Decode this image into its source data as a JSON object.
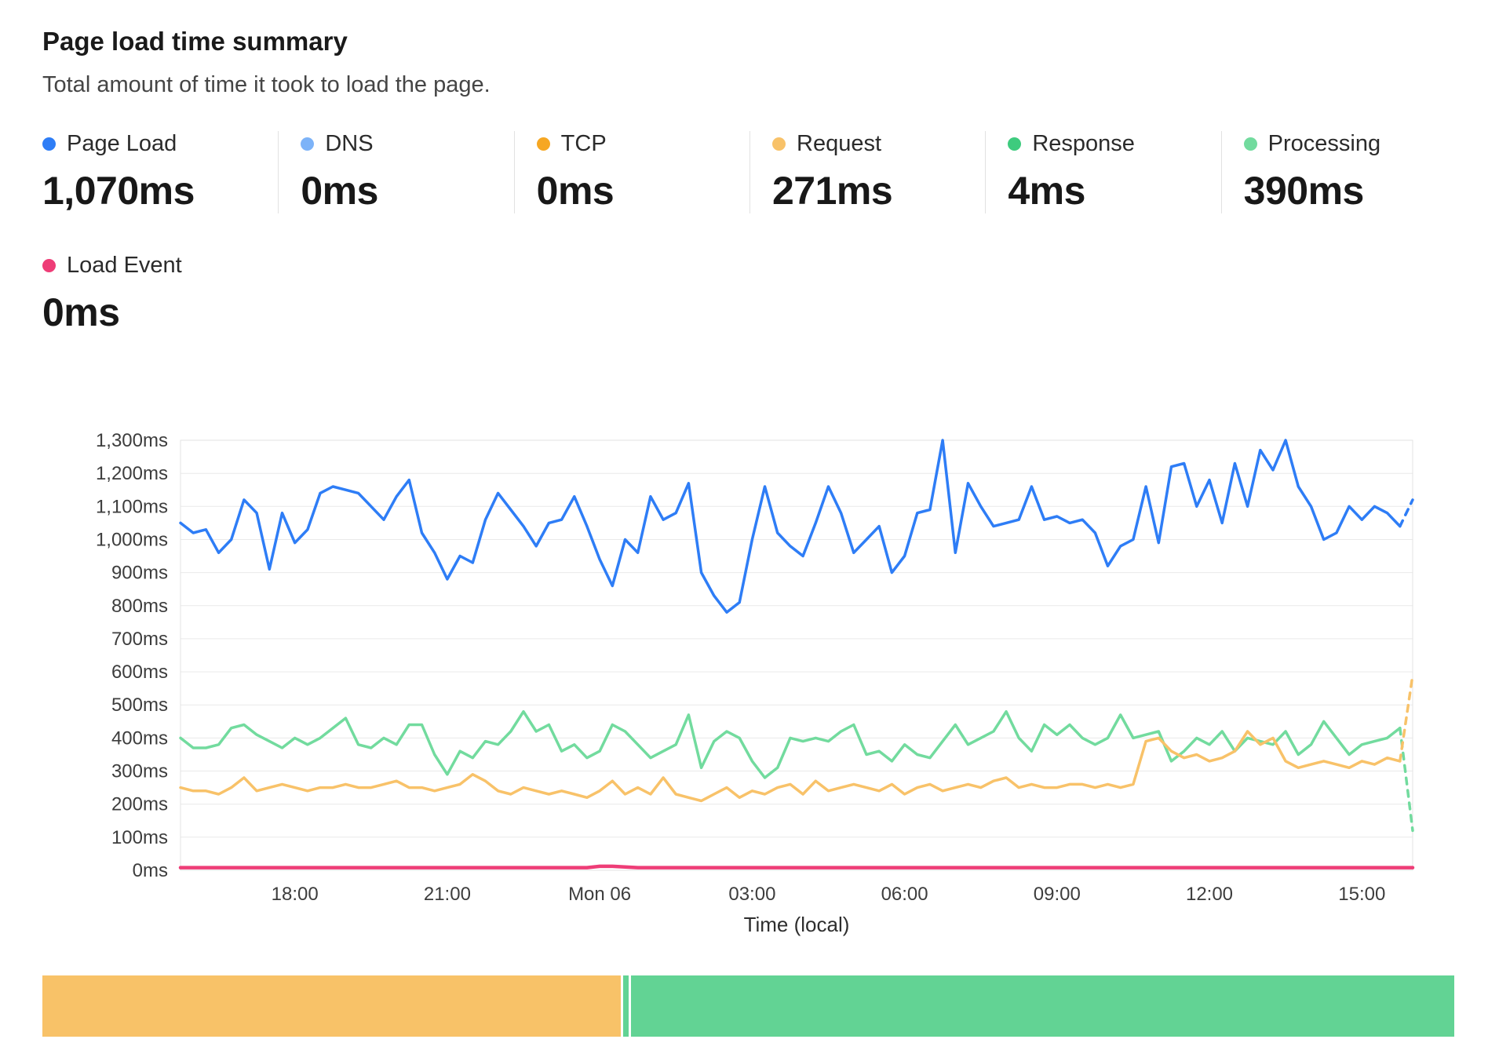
{
  "header": {
    "title": "Page load time summary",
    "subtitle": "Total amount of time it took to load the page."
  },
  "metrics": [
    {
      "label": "Page Load",
      "value": "1,070ms",
      "color": "#2e7df6"
    },
    {
      "label": "DNS",
      "value": "0ms",
      "color": "#7db3f8"
    },
    {
      "label": "TCP",
      "value": "0ms",
      "color": "#f6a723"
    },
    {
      "label": "Request",
      "value": "271ms",
      "color": "#f8c269"
    },
    {
      "label": "Response",
      "value": "4ms",
      "color": "#3ecb7e"
    },
    {
      "label": "Processing",
      "value": "390ms",
      "color": "#72db9e"
    },
    {
      "label": "Load Event",
      "value": "0ms",
      "color": "#ee3d77"
    }
  ],
  "chart_data": {
    "type": "line",
    "title": "Page load time summary",
    "xlabel": "Time (local)",
    "ylabel": "",
    "ylim": [
      0,
      1300
    ],
    "ytick_step": 100,
    "ytick_suffix": "ms",
    "grid": "horizontal",
    "legend_position": "top",
    "n_points": 98,
    "x_tick_labels": [
      "18:00",
      "21:00",
      "Mon 06",
      "03:00",
      "06:00",
      "09:00",
      "12:00",
      "15:00"
    ],
    "x_tick_indices": [
      9,
      21,
      33,
      45,
      57,
      69,
      81,
      93
    ],
    "series": [
      {
        "name": "Processing",
        "color": "#72db9e",
        "width": 3.5,
        "dash_tail": 1,
        "values": [
          400,
          370,
          370,
          380,
          430,
          440,
          410,
          390,
          370,
          400,
          380,
          400,
          430,
          460,
          380,
          370,
          400,
          380,
          440,
          440,
          350,
          290,
          360,
          340,
          390,
          380,
          420,
          480,
          420,
          440,
          360,
          380,
          340,
          360,
          440,
          420,
          380,
          340,
          360,
          380,
          470,
          310,
          390,
          420,
          400,
          330,
          280,
          310,
          400,
          390,
          400,
          390,
          420,
          440,
          350,
          360,
          330,
          380,
          350,
          340,
          390,
          440,
          380,
          400,
          420,
          480,
          400,
          360,
          440,
          410,
          440,
          400,
          380,
          400,
          470,
          400,
          410,
          420,
          330,
          360,
          400,
          380,
          420,
          360,
          400,
          390,
          380,
          420,
          350,
          380,
          450,
          400,
          350,
          380,
          390,
          400,
          430,
          120
        ]
      },
      {
        "name": "Request",
        "color": "#f8c269",
        "width": 3.5,
        "dash_tail": 1,
        "values": [
          250,
          240,
          240,
          230,
          250,
          280,
          240,
          250,
          260,
          250,
          240,
          250,
          250,
          260,
          250,
          250,
          260,
          270,
          250,
          250,
          240,
          250,
          260,
          290,
          270,
          240,
          230,
          250,
          240,
          230,
          240,
          230,
          220,
          240,
          270,
          230,
          250,
          230,
          280,
          230,
          220,
          210,
          230,
          250,
          220,
          240,
          230,
          250,
          260,
          230,
          270,
          240,
          250,
          260,
          250,
          240,
          260,
          230,
          250,
          260,
          240,
          250,
          260,
          250,
          270,
          280,
          250,
          260,
          250,
          250,
          260,
          260,
          250,
          260,
          250,
          260,
          390,
          400,
          360,
          340,
          350,
          330,
          340,
          360,
          420,
          380,
          400,
          330,
          310,
          320,
          330,
          320,
          310,
          330,
          320,
          340,
          330,
          590
        ]
      },
      {
        "name": "Load Event",
        "color": "#ee3d77",
        "width": 4.5,
        "dash_tail": 0,
        "values": [
          8,
          8,
          8,
          8,
          8,
          8,
          8,
          8,
          8,
          8,
          8,
          8,
          8,
          8,
          8,
          8,
          8,
          8,
          8,
          8,
          8,
          8,
          8,
          8,
          8,
          8,
          8,
          8,
          8,
          8,
          8,
          8,
          8,
          12,
          12,
          10,
          8,
          8,
          8,
          8,
          8,
          8,
          8,
          8,
          8,
          8,
          8,
          8,
          8,
          8,
          8,
          8,
          8,
          8,
          8,
          8,
          8,
          8,
          8,
          8,
          8,
          8,
          8,
          8,
          8,
          8,
          8,
          8,
          8,
          8,
          8,
          8,
          8,
          8,
          8,
          8,
          8,
          8,
          8,
          8,
          8,
          8,
          8,
          8,
          8,
          8,
          8,
          8,
          8,
          8,
          8,
          8,
          8,
          8,
          8,
          8,
          8,
          8
        ]
      },
      {
        "name": "Page Load",
        "color": "#2e7df6",
        "width": 3.5,
        "dash_tail": 1,
        "values": [
          1050,
          1020,
          1030,
          960,
          1000,
          1120,
          1080,
          910,
          1080,
          990,
          1030,
          1140,
          1160,
          1150,
          1140,
          1100,
          1060,
          1130,
          1180,
          1020,
          960,
          880,
          950,
          930,
          1060,
          1140,
          1090,
          1040,
          980,
          1050,
          1060,
          1130,
          1040,
          940,
          860,
          1000,
          960,
          1130,
          1060,
          1080,
          1170,
          900,
          830,
          780,
          810,
          1000,
          1160,
          1020,
          980,
          950,
          1050,
          1160,
          1080,
          960,
          1000,
          1040,
          900,
          950,
          1080,
          1090,
          1300,
          960,
          1170,
          1100,
          1040,
          1050,
          1060,
          1160,
          1060,
          1070,
          1050,
          1060,
          1020,
          920,
          980,
          1000,
          1160,
          990,
          1220,
          1230,
          1100,
          1180,
          1050,
          1230,
          1100,
          1270,
          1210,
          1300,
          1160,
          1100,
          1000,
          1020,
          1100,
          1060,
          1100,
          1080,
          1040,
          1120
        ]
      }
    ]
  },
  "breakdown_bar": {
    "segments": [
      {
        "name": "request-share",
        "color": "#f8c268",
        "pct": 40.9
      },
      {
        "name": "sliver",
        "color": "#62d394",
        "pct": 0.4
      },
      {
        "name": "processing-share",
        "color": "#62d394",
        "pct": 58.2
      }
    ]
  }
}
